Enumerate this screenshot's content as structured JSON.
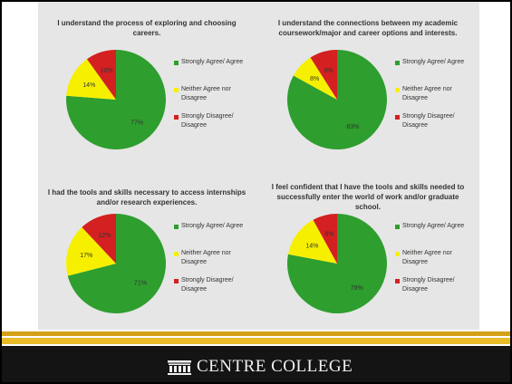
{
  "colors": {
    "agree": "#2e9e2e",
    "neutral": "#f6f000",
    "disagree": "#d42020",
    "gold": "#d4a017"
  },
  "footer": {
    "college_name": "CENTRE COLLEGE",
    "logo_icon": "columned-building-icon"
  },
  "chart_data": [
    {
      "type": "pie",
      "title": "I understand the process of exploring and choosing careers.",
      "categories": [
        "Strongly Agree/ Agree",
        "Neither Agree nor Disagree",
        "Strongly Disagree/ Disagree"
      ],
      "values": [
        77,
        14,
        10
      ],
      "labels": [
        "77%",
        "14%",
        "10%"
      ],
      "legend": "right"
    },
    {
      "type": "pie",
      "title": "I understand the connections between my academic coursework/major and career options and interests.",
      "categories": [
        "Strongly Agree/ Agree",
        "Neither Agree nor Disagree",
        "Strongly Disagree/ Disagree"
      ],
      "values": [
        83,
        8,
        9
      ],
      "labels": [
        "83%",
        "8%",
        "9%"
      ],
      "legend": "right"
    },
    {
      "type": "pie",
      "title": "I had the tools and skills necessary to access internships and/or research experiences.",
      "categories": [
        "Strongly Agree/ Agree",
        "Neither Agree nor Disagree",
        "Strongly Disagree/ Disagree"
      ],
      "values": [
        71,
        17,
        12
      ],
      "labels": [
        "71%",
        "17%",
        "12%"
      ],
      "legend": "right"
    },
    {
      "type": "pie",
      "title": "I feel confident that I have the tools and skills needed to successfully enter the world of work and/or graduate school.",
      "categories": [
        "Strongly Agree/ Agree",
        "Neither Agree nor Disagree",
        "Strongly Disagree/ Disagree"
      ],
      "values": [
        78,
        14,
        8
      ],
      "labels": [
        "78%",
        "14%",
        "8%"
      ],
      "legend": "right"
    }
  ]
}
